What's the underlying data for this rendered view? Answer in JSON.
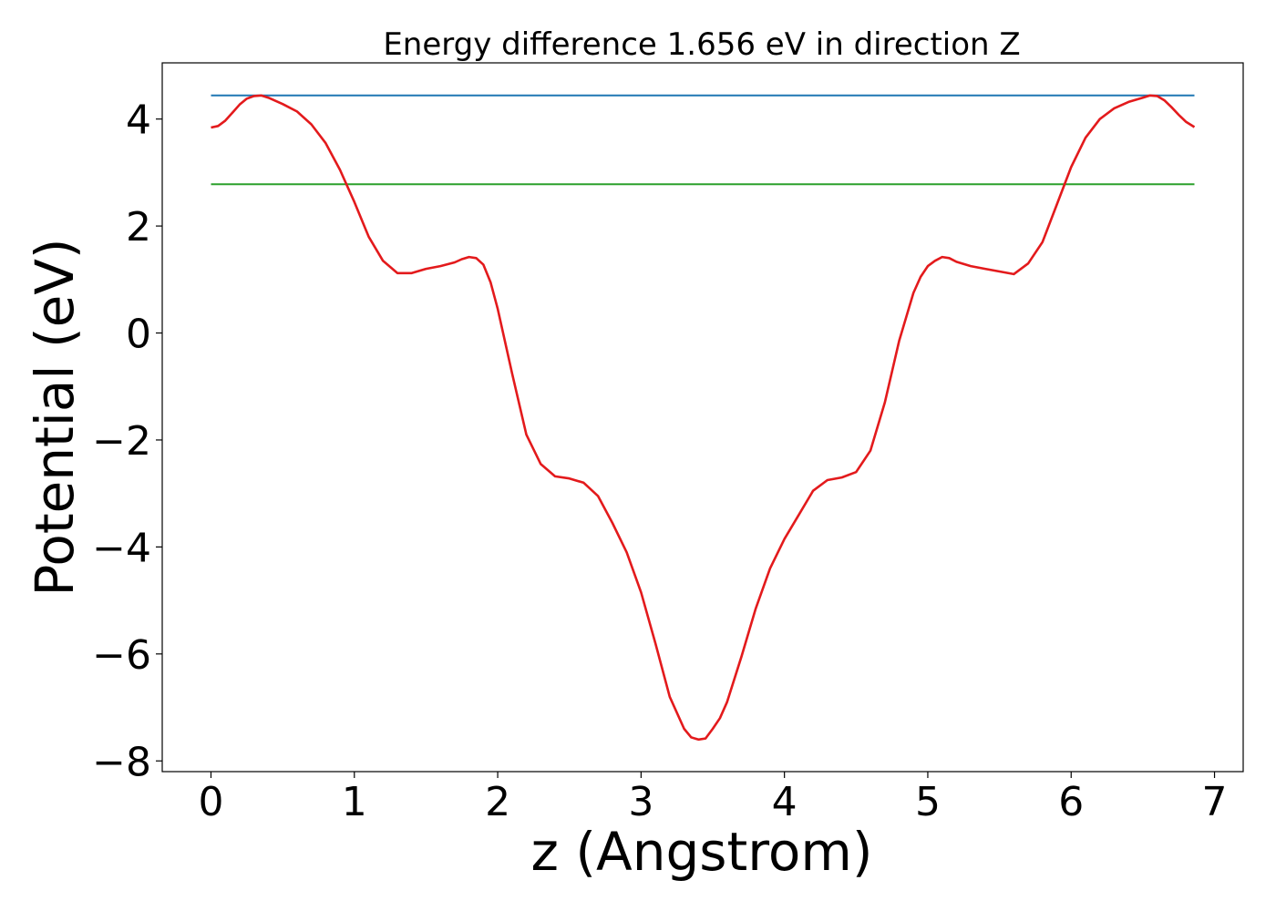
{
  "chart_data": {
    "type": "line",
    "title": "Energy difference 1.656 eV in direction Z",
    "xlabel": "z (Angstrom)",
    "ylabel": "Potential (eV)",
    "xlim": [
      -0.34,
      7.2
    ],
    "ylim": [
      -8.2,
      5.05
    ],
    "xticks": [
      0,
      1,
      2,
      3,
      4,
      5,
      6,
      7
    ],
    "yticks": [
      -8,
      -6,
      -4,
      -2,
      0,
      2,
      4
    ],
    "xtick_labels": [
      "0",
      "1",
      "2",
      "3",
      "4",
      "5",
      "6",
      "7"
    ],
    "ytick_labels": [
      "−8",
      "−6",
      "−4",
      "−2",
      "0",
      "2",
      "4"
    ],
    "grid": false,
    "series": [
      {
        "color": "#1f77b4",
        "x": [
          0,
          6.86
        ],
        "y": [
          4.44,
          4.44
        ]
      },
      {
        "color": "#2ca02c",
        "x": [
          0,
          6.86
        ],
        "y": [
          2.78,
          2.78
        ]
      },
      {
        "color": "#e31a1c",
        "x": [
          0,
          0.05,
          0.1,
          0.15,
          0.2,
          0.25,
          0.3,
          0.35,
          0.4,
          0.5,
          0.6,
          0.7,
          0.8,
          0.9,
          1.0,
          1.1,
          1.2,
          1.3,
          1.4,
          1.5,
          1.6,
          1.7,
          1.75,
          1.8,
          1.85,
          1.9,
          1.95,
          2.0,
          2.1,
          2.2,
          2.3,
          2.4,
          2.5,
          2.6,
          2.7,
          2.8,
          2.9,
          3.0,
          3.1,
          3.2,
          3.3,
          3.35,
          3.4,
          3.45,
          3.5,
          3.55,
          3.6,
          3.7,
          3.8,
          3.9,
          4.0,
          4.1,
          4.2,
          4.3,
          4.4,
          4.5,
          4.6,
          4.7,
          4.8,
          4.9,
          4.95,
          5.0,
          5.05,
          5.1,
          5.15,
          5.2,
          5.3,
          5.4,
          5.5,
          5.6,
          5.7,
          5.8,
          5.9,
          6.0,
          6.1,
          6.2,
          6.3,
          6.4,
          6.5,
          6.55,
          6.6,
          6.65,
          6.7,
          6.75,
          6.8,
          6.86
        ],
        "y": [
          3.84,
          3.87,
          3.97,
          4.12,
          4.27,
          4.38,
          4.43,
          4.44,
          4.4,
          4.28,
          4.14,
          3.9,
          3.55,
          3.05,
          2.45,
          1.8,
          1.35,
          1.12,
          1.12,
          1.2,
          1.25,
          1.32,
          1.38,
          1.42,
          1.4,
          1.28,
          0.95,
          0.45,
          -0.75,
          -1.9,
          -2.45,
          -2.68,
          -2.72,
          -2.8,
          -3.05,
          -3.55,
          -4.1,
          -4.85,
          -5.8,
          -6.8,
          -7.4,
          -7.56,
          -7.6,
          -7.58,
          -7.4,
          -7.2,
          -6.9,
          -6.05,
          -5.15,
          -4.4,
          -3.85,
          -3.4,
          -2.95,
          -2.75,
          -2.7,
          -2.6,
          -2.2,
          -1.3,
          -0.15,
          0.75,
          1.05,
          1.25,
          1.35,
          1.42,
          1.4,
          1.33,
          1.25,
          1.2,
          1.15,
          1.1,
          1.3,
          1.7,
          2.4,
          3.1,
          3.65,
          4.0,
          4.2,
          4.32,
          4.4,
          4.44,
          4.43,
          4.35,
          4.22,
          4.08,
          3.95,
          3.85
        ]
      }
    ]
  }
}
